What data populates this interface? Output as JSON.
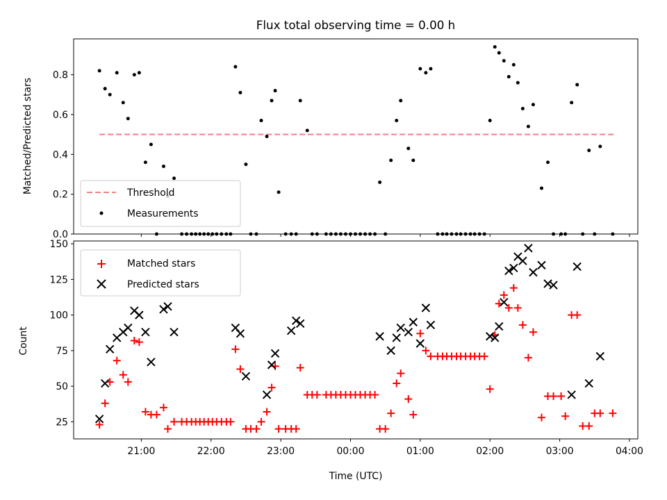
{
  "figure": {
    "title": "Flux total observing time = 0.00 h",
    "xlabel": "Time (UTC)"
  },
  "colors": {
    "threshold": "#f08080",
    "measurements": "#000000",
    "matched": "#ff0000",
    "predicted": "#000000"
  },
  "chart_data": [
    {
      "type": "scatter",
      "panel": "top",
      "title": "Flux total observing time = 0.00 h",
      "xlabel": "",
      "ylabel": "Matched/Predicted stars",
      "x_unit": "hours after 00:00 UTC",
      "xlim": [
        -3.97,
        4.12
      ],
      "ylim": [
        0.0,
        0.98
      ],
      "yticks": [
        0.0,
        0.2,
        0.4,
        0.6,
        0.8
      ],
      "ytick_labels": [
        "0.0",
        "0.2",
        "0.4",
        "0.6",
        "0.8"
      ],
      "xticks": [
        -3,
        -2,
        -1,
        0,
        1,
        2,
        3,
        4
      ],
      "legend": "lower-left",
      "series": [
        {
          "name": "Threshold",
          "style": "dashed-line",
          "x": [
            -3.6,
            3.78
          ],
          "y": [
            0.5,
            0.5
          ]
        },
        {
          "name": "Measurements",
          "style": "dot",
          "x": [
            -3.6,
            -3.52,
            -3.45,
            -3.35,
            -3.26,
            -3.19,
            -3.1,
            -3.03,
            -2.94,
            -2.86,
            -2.78,
            -2.68,
            -2.62,
            -2.53,
            -2.42,
            -2.35,
            -2.28,
            -2.22,
            -2.16,
            -2.1,
            -2.04,
            -1.98,
            -1.92,
            -1.85,
            -1.78,
            -1.72,
            -1.65,
            -1.58,
            -1.5,
            -1.43,
            -1.35,
            -1.28,
            -1.2,
            -1.13,
            -1.08,
            -1.03,
            -0.93,
            -0.85,
            -0.78,
            -0.72,
            -0.62,
            -0.55,
            -0.48,
            -0.35,
            -0.28,
            -0.21,
            -0.14,
            -0.07,
            0.0,
            0.07,
            0.14,
            0.21,
            0.28,
            0.35,
            0.42,
            0.5,
            0.58,
            0.66,
            0.72,
            0.83,
            0.9,
            1.0,
            1.08,
            1.15,
            1.25,
            1.32,
            1.38,
            1.45,
            1.52,
            1.58,
            1.65,
            1.72,
            1.78,
            1.85,
            1.92,
            2.0,
            2.07,
            2.13,
            2.2,
            2.27,
            2.34,
            2.4,
            2.47,
            2.55,
            2.62,
            2.74,
            2.83,
            2.91,
            3.02,
            3.08,
            3.17,
            3.25,
            3.33,
            3.42,
            3.5,
            3.58,
            3.76
          ],
          "y": [
            0.82,
            0.73,
            0.7,
            0.81,
            0.66,
            0.58,
            0.8,
            0.81,
            0.36,
            0.45,
            0.0,
            0.34,
            0.19,
            0.28,
            0.0,
            0.0,
            0.0,
            0.0,
            0.0,
            0.0,
            0.0,
            0.0,
            0.0,
            0.0,
            0.0,
            0.0,
            0.84,
            0.71,
            0.35,
            0.0,
            0.0,
            0.57,
            0.49,
            0.67,
            0.72,
            0.21,
            0.0,
            0.0,
            0.0,
            0.67,
            0.52,
            0.0,
            0.0,
            0.0,
            0.0,
            0.0,
            0.0,
            0.0,
            0.0,
            0.0,
            0.0,
            0.0,
            0.0,
            0.0,
            0.26,
            0.0,
            0.37,
            0.57,
            0.67,
            0.43,
            0.37,
            0.83,
            0.81,
            0.83,
            0.0,
            0.0,
            0.0,
            0.0,
            0.0,
            0.0,
            0.0,
            0.0,
            0.0,
            0.0,
            0.0,
            0.57,
            0.94,
            0.91,
            0.87,
            0.79,
            0.85,
            0.76,
            0.63,
            0.54,
            0.65,
            0.23,
            0.36,
            0.0,
            0.0,
            0.0,
            0.66,
            0.75,
            0.0,
            0.42,
            0.0,
            0.44,
            0.0
          ]
        }
      ]
    },
    {
      "type": "scatter",
      "panel": "bottom",
      "xlabel": "Time (UTC)",
      "ylabel": "Count",
      "x_unit": "hours after 00:00 UTC",
      "xlim": [
        -3.97,
        4.12
      ],
      "ylim": [
        13,
        152
      ],
      "yticks": [
        25,
        50,
        75,
        100,
        125,
        150
      ],
      "ytick_labels": [
        "25",
        "50",
        "75",
        "100",
        "125",
        "150"
      ],
      "xticks": [
        -3,
        -2,
        -1,
        0,
        1,
        2,
        3,
        4
      ],
      "xtick_labels": [
        "21:00",
        "22:00",
        "23:00",
        "00:00",
        "01:00",
        "02:00",
        "03:00",
        "04:00"
      ],
      "legend": "upper-left",
      "series": [
        {
          "name": "Matched stars",
          "style": "plus",
          "x": [
            -3.6,
            -3.52,
            -3.45,
            -3.35,
            -3.26,
            -3.19,
            -3.1,
            -3.03,
            -2.94,
            -2.86,
            -2.78,
            -2.68,
            -2.62,
            -2.53,
            -2.42,
            -2.35,
            -2.28,
            -2.22,
            -2.16,
            -2.1,
            -2.04,
            -1.98,
            -1.92,
            -1.85,
            -1.78,
            -1.72,
            -1.65,
            -1.58,
            -1.5,
            -1.43,
            -1.35,
            -1.28,
            -1.2,
            -1.13,
            -1.08,
            -1.03,
            -0.93,
            -0.85,
            -0.78,
            -0.72,
            -0.62,
            -0.55,
            -0.48,
            -0.35,
            -0.28,
            -0.21,
            -0.14,
            -0.07,
            0.0,
            0.07,
            0.14,
            0.21,
            0.28,
            0.35,
            0.42,
            0.5,
            0.58,
            0.66,
            0.72,
            0.83,
            0.9,
            1.0,
            1.08,
            1.15,
            1.25,
            1.32,
            1.38,
            1.45,
            1.52,
            1.58,
            1.65,
            1.72,
            1.78,
            1.85,
            1.92,
            2.0,
            2.07,
            2.13,
            2.2,
            2.27,
            2.34,
            2.4,
            2.47,
            2.55,
            2.62,
            2.74,
            2.83,
            2.91,
            3.02,
            3.08,
            3.17,
            3.25,
            3.33,
            3.42,
            3.5,
            3.58,
            3.76
          ],
          "y": [
            23,
            38,
            53,
            68,
            58,
            53,
            82,
            81,
            32,
            30,
            30,
            35,
            20,
            25,
            25,
            25,
            25,
            25,
            25,
            25,
            25,
            25,
            25,
            25,
            25,
            25,
            76,
            62,
            20,
            20,
            20,
            25,
            32,
            49,
            64,
            20,
            20,
            20,
            20,
            63,
            44,
            44,
            44,
            44,
            44,
            44,
            44,
            44,
            44,
            44,
            44,
            44,
            44,
            44,
            20,
            20,
            31,
            52,
            59,
            41,
            30,
            87,
            75,
            71,
            71,
            71,
            71,
            71,
            71,
            71,
            71,
            71,
            71,
            71,
            71,
            48,
            86,
            108,
            114,
            105,
            119,
            105,
            93,
            70,
            88,
            28,
            43,
            43,
            43,
            29,
            100,
            100,
            22,
            22,
            31,
            31,
            31
          ]
        },
        {
          "name": "Predicted stars",
          "style": "x",
          "x": [
            -3.6,
            -3.52,
            -3.45,
            -3.35,
            -3.26,
            -3.19,
            -3.1,
            -3.03,
            -2.94,
            -2.86,
            -2.68,
            -2.62,
            -2.53,
            -1.65,
            -1.58,
            -1.5,
            -1.2,
            -1.13,
            -1.08,
            -0.85,
            -0.78,
            -0.72,
            0.42,
            0.58,
            0.66,
            0.72,
            0.83,
            0.9,
            1.0,
            1.08,
            1.15,
            2.0,
            2.07,
            2.13,
            2.2,
            2.27,
            2.34,
            2.4,
            2.47,
            2.55,
            2.62,
            2.74,
            2.83,
            2.91,
            3.17,
            3.25,
            3.42,
            3.58
          ],
          "y": [
            27,
            52,
            76,
            84,
            88,
            91,
            103,
            100,
            88,
            67,
            104,
            106,
            88,
            91,
            87,
            57,
            44,
            65,
            73,
            89,
            96,
            94,
            85,
            75,
            84,
            91,
            88,
            95,
            80,
            105,
            93,
            85,
            84,
            92,
            109,
            131,
            133,
            141,
            138,
            147,
            130,
            135,
            122,
            121,
            44,
            134,
            52,
            71
          ]
        }
      ]
    }
  ]
}
